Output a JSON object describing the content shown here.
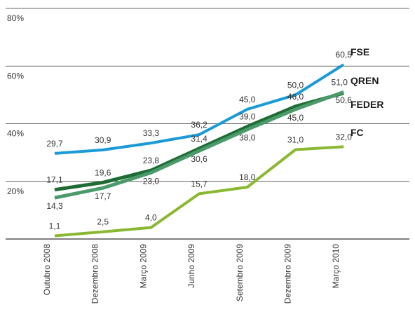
{
  "chart_data": {
    "type": "line",
    "title": "",
    "xlabel": "",
    "ylabel": "",
    "ylim": [
      0,
      80
    ],
    "y_ticks": [
      {
        "value": 20,
        "label": "20%"
      },
      {
        "value": 40,
        "label": "40%"
      },
      {
        "value": 60,
        "label": "60%"
      },
      {
        "value": 80,
        "label": "80%"
      }
    ],
    "grid": true,
    "categories": [
      "Outubro 2008",
      "Dezembro 2008",
      "Março 2009",
      "Junho 2009",
      "Setembro 2009",
      "Dezembro 2009",
      "Março 2010"
    ],
    "series": [
      {
        "name": "FSE",
        "color": "#1a9ad6",
        "values": [
          29.7,
          30.9,
          33.3,
          36.2,
          45.0,
          50.0,
          60.5
        ],
        "labels": [
          "29,7",
          "30,9",
          "33,3",
          "36,2",
          "45,0",
          "50,0",
          "60,5"
        ]
      },
      {
        "name": "QREN",
        "color": "#4a9a6a",
        "values": [
          14.3,
          17.7,
          23.0,
          30.6,
          38.0,
          45.0,
          51.0
        ],
        "labels": [
          "14,3",
          "17,7",
          "23,0",
          "30,6",
          "38,0",
          "45,0",
          "51,0"
        ]
      },
      {
        "name": "FEDER",
        "color": "#1e6b34",
        "values": [
          17.1,
          19.6,
          23.8,
          31.4,
          39.0,
          46.0,
          50.6
        ],
        "labels": [
          "17,1",
          "19,6",
          "23,8",
          "31,4",
          "39,0",
          "46,0",
          "50,6"
        ]
      },
      {
        "name": "FC",
        "color": "#8ab832",
        "values": [
          1.1,
          2.5,
          4.0,
          15.7,
          18.0,
          31.0,
          32.0
        ],
        "labels": [
          "1,1",
          "2,5",
          "4,0",
          "15,7",
          "18,0",
          "31,0",
          "32,0"
        ]
      }
    ],
    "legend": "series names at right end of lines"
  }
}
